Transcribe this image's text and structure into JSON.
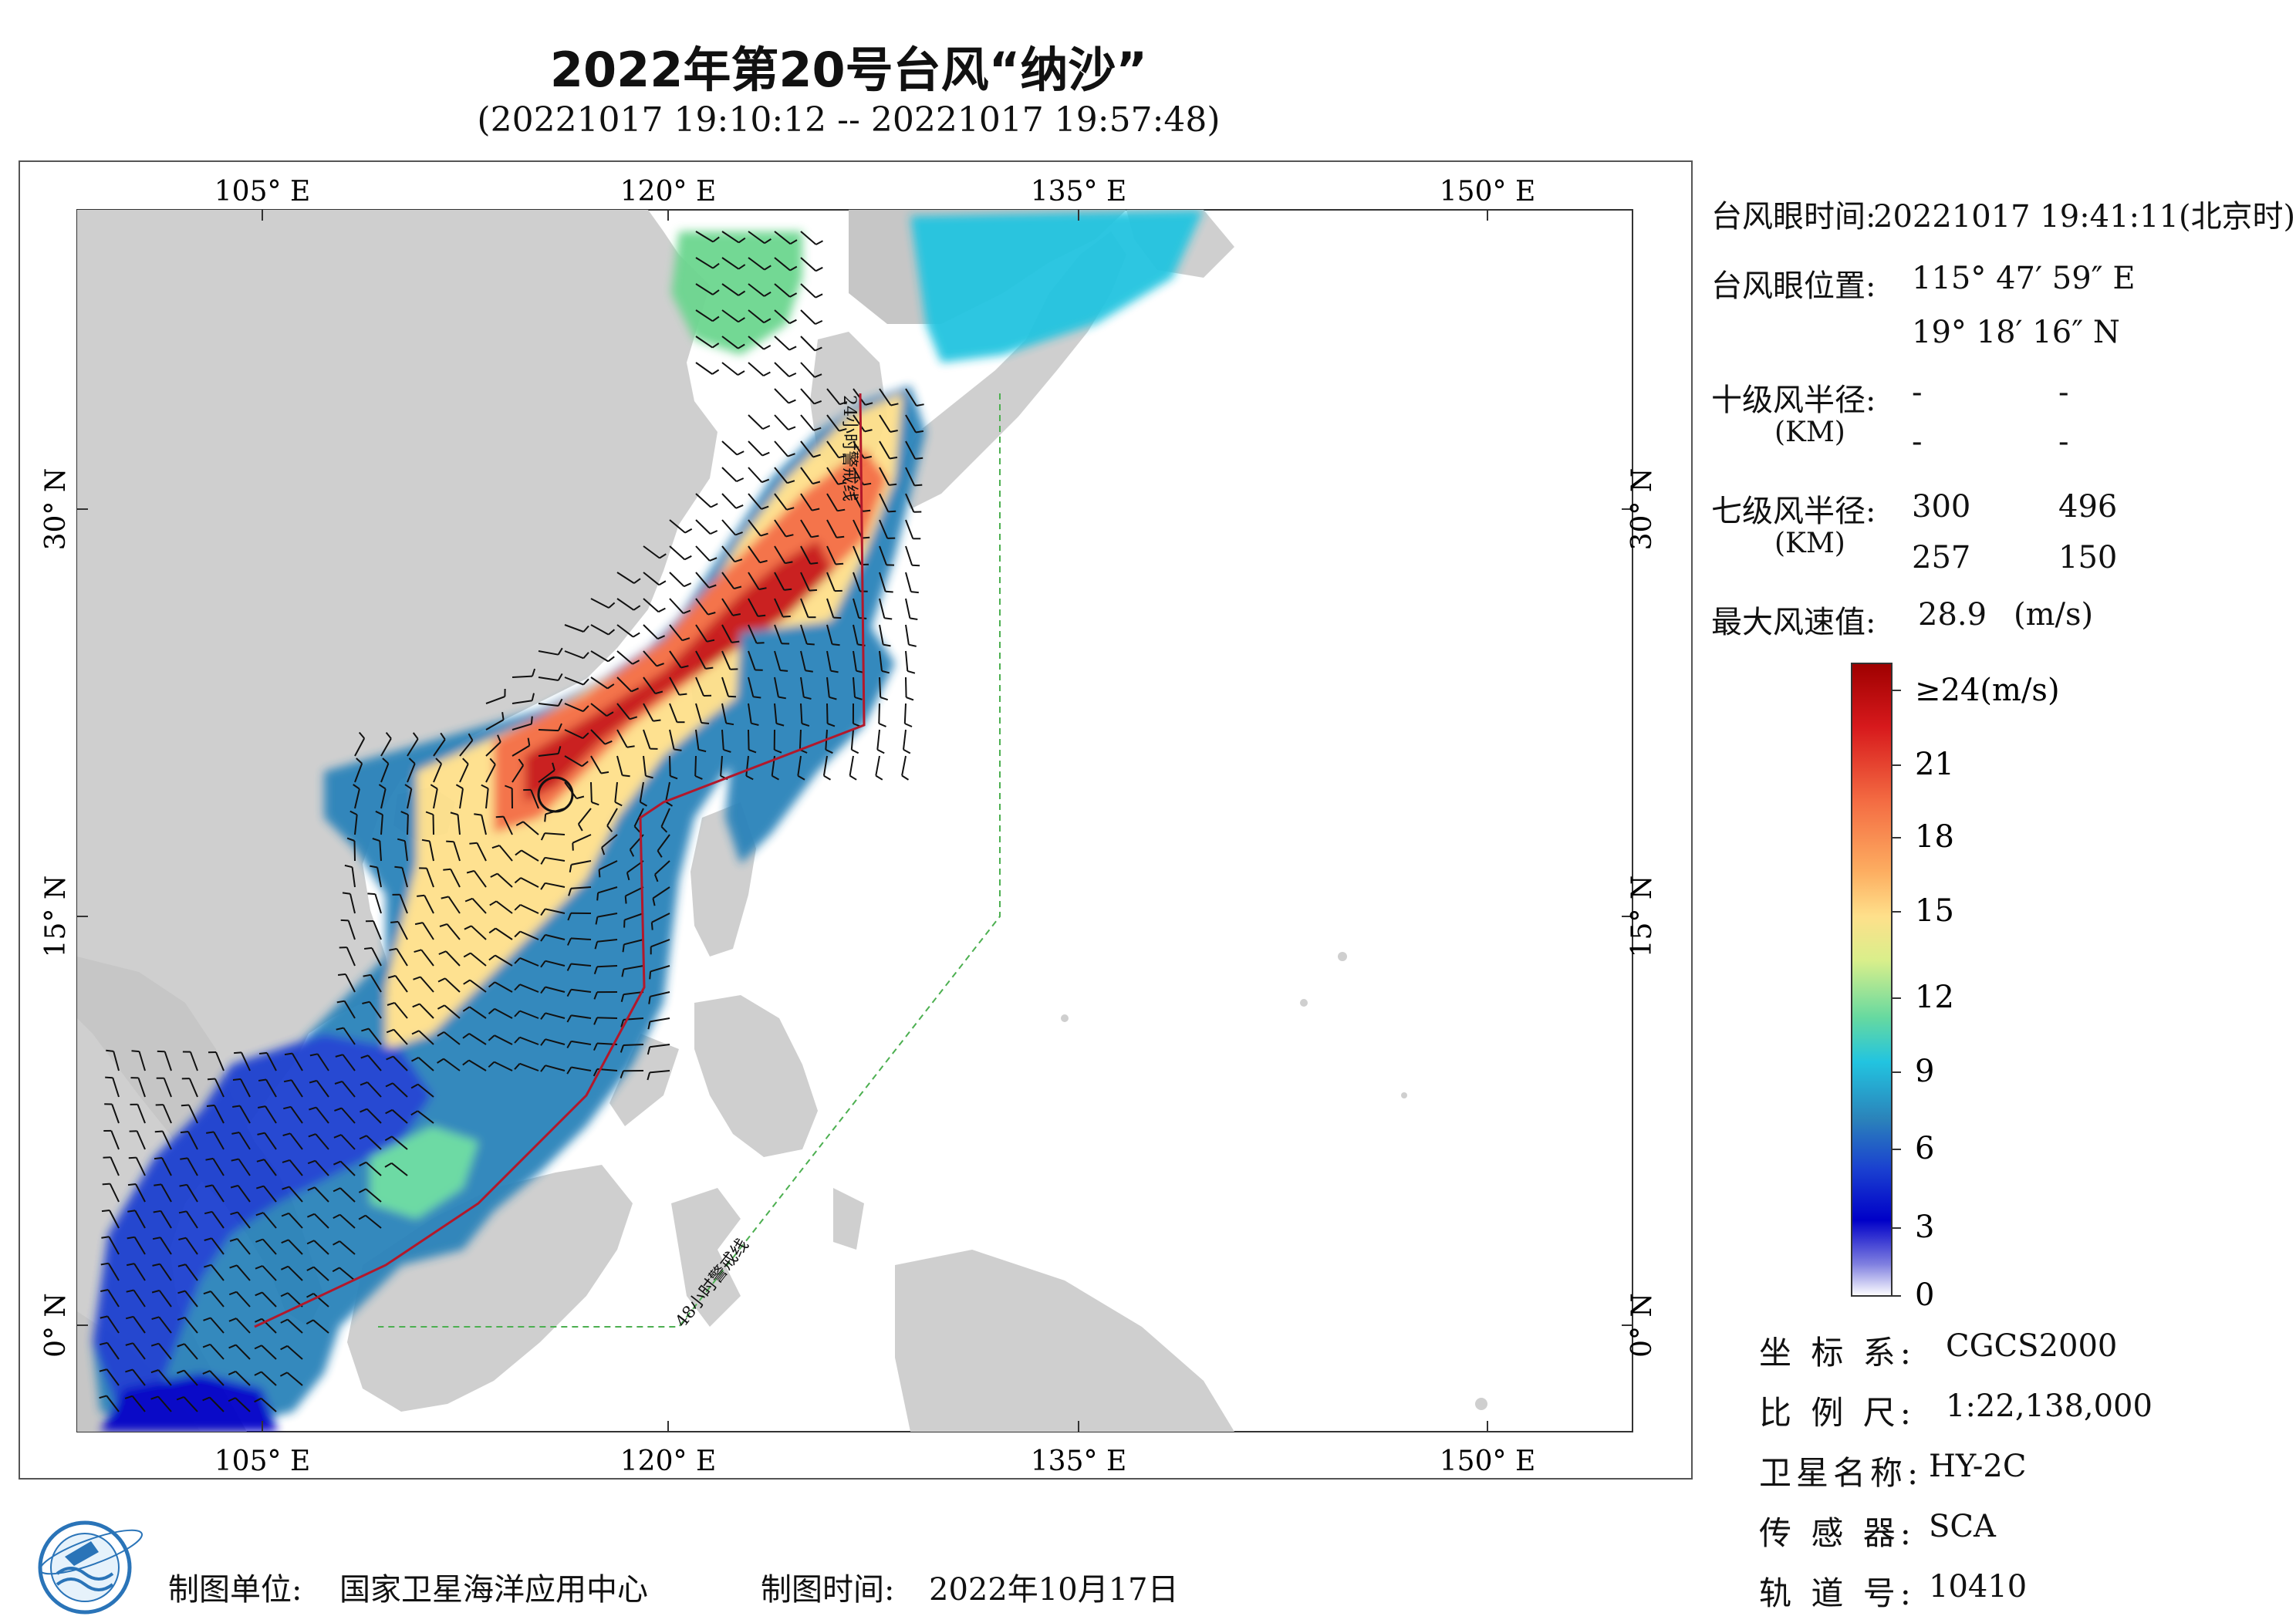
{
  "header": {
    "title": "2022年第20号台风“纳沙”",
    "subtitle": "(20221017 19:10:12 -- 20221017 19:57:48)"
  },
  "map": {
    "lon_labels": [
      "105° E",
      "120° E",
      "135° E",
      "150° E"
    ],
    "lat_labels": [
      "30° N",
      "15° N",
      "0° N"
    ],
    "warning_line_24h": "24小时警戒线",
    "warning_line_48h": "48小时警戒线",
    "colors": {
      "land": "#cfcfcf",
      "sea": "#ffffff",
      "track": "#b2182b",
      "warning48": "#4caf50"
    }
  },
  "info": {
    "eye_time_label": "台风眼时间:",
    "eye_time_value": "20221017 19:41:11(北京时)",
    "eye_pos_label": "台风眼位置:",
    "eye_lon": "115° 47′ 59″ E",
    "eye_lat": "19° 18′ 16″ N",
    "r10_label": "十级风半径:",
    "km": "(KM)",
    "r10_values": [
      "-",
      "-",
      "-",
      "-"
    ],
    "r7_label": "七级风半径:",
    "r7_values": [
      "300",
      "496",
      "257",
      "150"
    ],
    "maxwind_label": "最大风速值:",
    "maxwind_value": "28.9",
    "maxwind_unit": "(m/s)"
  },
  "colorbar": {
    "labels": [
      "≥24(m/s)",
      "21",
      "18",
      "15",
      "12",
      "9",
      "6",
      "3",
      "0"
    ],
    "colors": [
      "#9e0000",
      "#d7191c",
      "#f46d43",
      "#fdae61",
      "#fee08b",
      "#d9ef8b",
      "#66d9a0",
      "#22c4e0",
      "#2b83ba",
      "#1a40d0",
      "#0000c8",
      "#8080e0",
      "#ffffff"
    ]
  },
  "meta": {
    "crs_label": "坐 标 系:",
    "crs_value": "CGCS2000",
    "scale_label": "比 例 尺:",
    "scale_value": "1:22,138,000",
    "sat_label": "卫星名称:",
    "sat_value": "HY-2C",
    "sensor_label": "传 感 器:",
    "sensor_value": "SCA",
    "orbit_label": "轨 道 号:",
    "orbit_value": "10410"
  },
  "footer": {
    "unit_label": "制图单位:",
    "unit_value": "国家卫星海洋应用中心",
    "time_label": "制图时间:",
    "time_value": "2022年10月17日"
  }
}
